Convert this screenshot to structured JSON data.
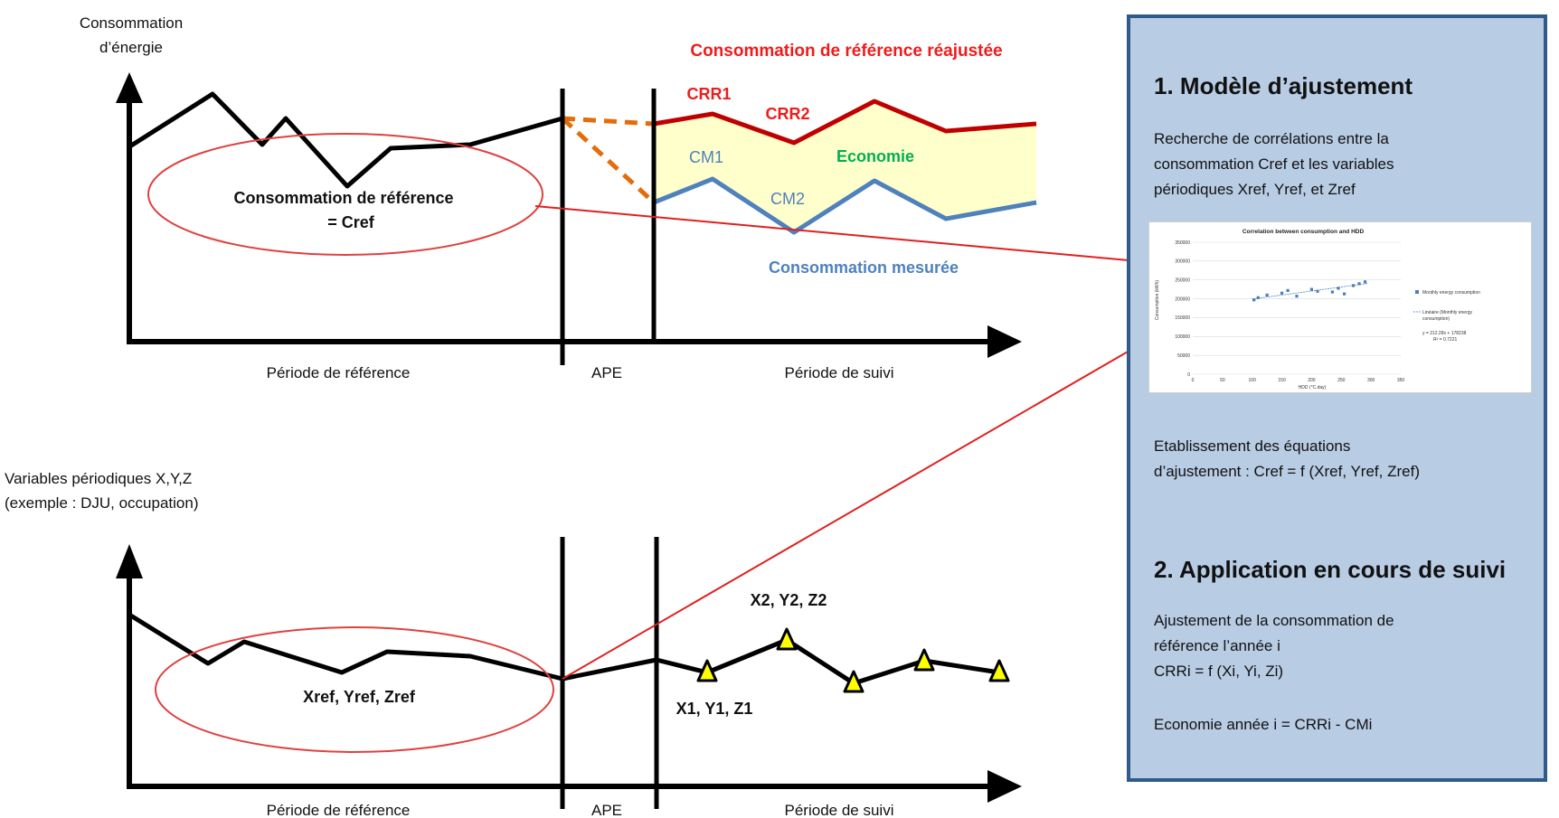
{
  "top_chart": {
    "y_axis_title_l1": "Consommation",
    "y_axis_title_l2": "d’énergie",
    "adjusted_title": "Consommation  de référence réajustée",
    "measured_title": "Consommation  mesurée",
    "saving_label": "Economie",
    "crr1": "CRR1",
    "crr2": "CRR2",
    "cm1": "CM1",
    "cm2": "CM2",
    "cref_l1": "Consommation  de référence",
    "cref_l2": "= Cref",
    "period_ref": "Période de référence",
    "ape": "APE",
    "period_follow": "Période de suivi",
    "colors": {
      "adjusted": "#c00000",
      "measured": "#4f81bd",
      "saving": "#00b050",
      "fill": "#ffffcc",
      "dashed": "#e46c0a",
      "ellipse": "#e04040"
    }
  },
  "bottom_chart": {
    "title_l1": "Variables périodiques X,Y,Z",
    "title_l2": "(exemple : DJU, occupation)",
    "xyz_ref": "Xref, Yref, Zref",
    "xyz1": "X1, Y1, Z1",
    "xyz2": "X2, Y2, Z2",
    "period_ref": "Période de référence",
    "ape": "APE",
    "period_follow": "Période de suivi",
    "marker_color": "#ffff00"
  },
  "panel": {
    "h1": "1. Modèle d’ajustement",
    "t1": "Recherche de corrélations entre la\nconsommation Cref et les variables\npériodiques Xref, Yref, et Zref",
    "t2": "Etablissement des équations\nd’ajustement : Cref = f (Xref, Yref, Zref)",
    "h2": "2. Application  en cours  de suivi",
    "t3": "Ajustement de la consommation de\nréférence l’année i\n CRRi = f (Xi, Yi, Zi)",
    "t4": "Economie année i = CRRi - CMi",
    "background": "#b8cce4",
    "border": "#2f5a8a"
  },
  "thumbnail_chart": {
    "title": "Correlation  between consumption and HDD",
    "yticks": [
      "350000",
      "300000",
      "250000",
      "200000",
      "150000",
      "100000",
      "50000",
      "0"
    ],
    "xticks": [
      "0",
      "50",
      "100",
      "150",
      "200",
      "250",
      "300",
      "350"
    ],
    "ylabel": "Consumption (kWh)",
    "xlabel": "HDD (°C.day)",
    "legend_series": "Monthly energy consumption",
    "legend_trend_l1": "Linéaire (Monthly energy",
    "legend_trend_l2": "consumption)",
    "equation": "y = 212.28x + 178238",
    "r2": "R² = 0.7221"
  },
  "chart_data": {
    "type": "scatter",
    "title": "Correlation  between consumption and HDD",
    "xlabel": "HDD (°C.day)",
    "ylabel": "Consumption (kWh)",
    "xlim": [
      0,
      350
    ],
    "ylim": [
      0,
      350000
    ],
    "series": [
      {
        "name": "Monthly energy consumption",
        "x": [
          103,
          110,
          125,
          150,
          160,
          175,
          200,
          210,
          235,
          245,
          255,
          270,
          280,
          290
        ],
        "y": [
          197000,
          203000,
          210000,
          215000,
          222000,
          207000,
          225000,
          220000,
          218000,
          228000,
          213000,
          235000,
          240000,
          245000
        ]
      }
    ],
    "trend": {
      "slope": 212.28,
      "intercept": 178238
    }
  }
}
